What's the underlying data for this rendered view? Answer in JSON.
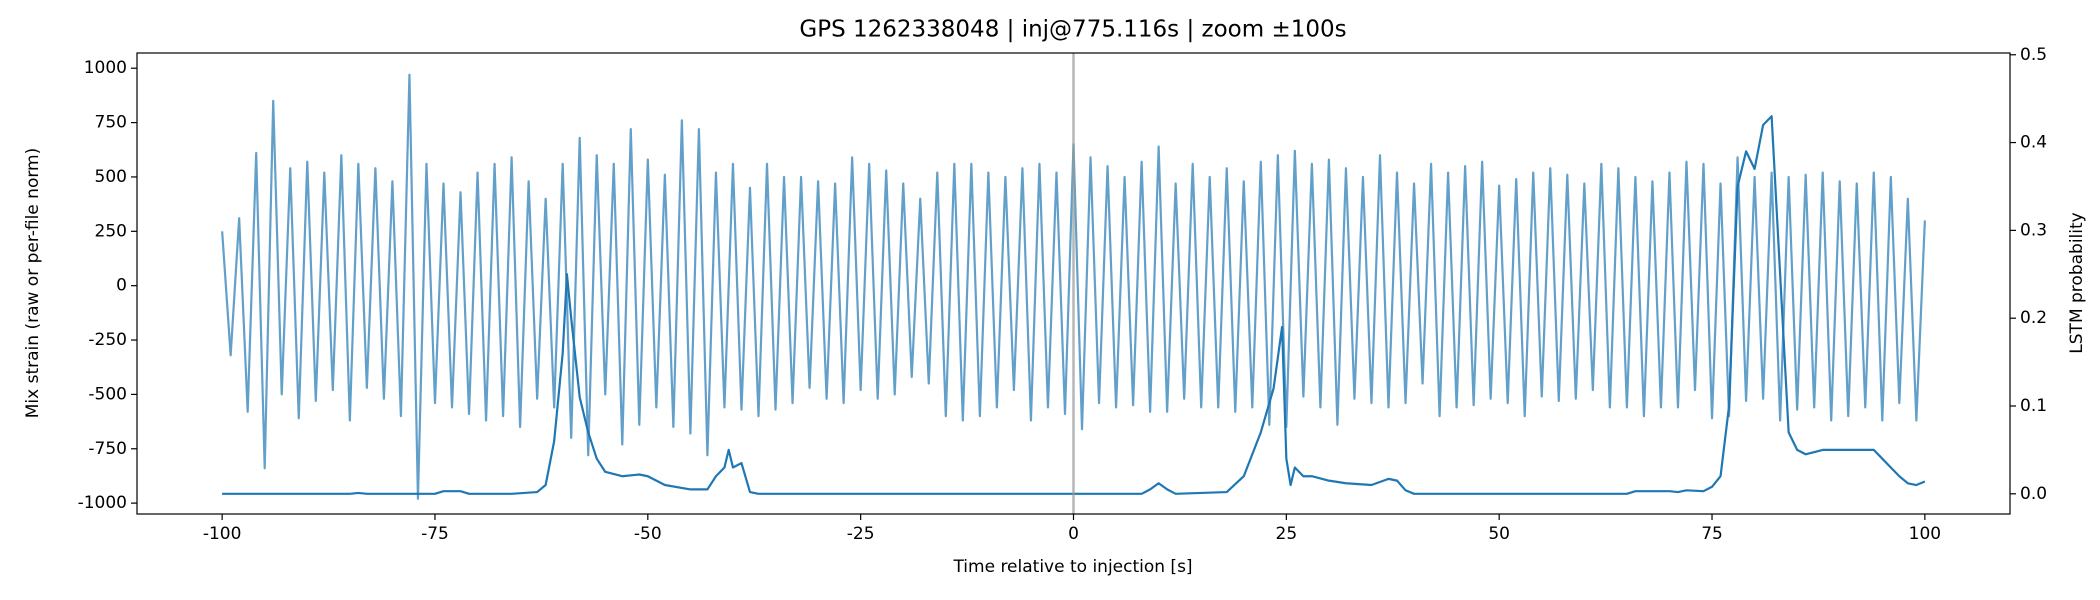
{
  "chart_data": {
    "type": "line",
    "title": "GPS 1262338048 | inj@775.116s | zoom ±100s",
    "xlabel": "Time relative to injection [s]",
    "ylabel": "Mix strain (raw or per-file norm)",
    "y2label": "LSTM probability",
    "xlim": [
      -110,
      110
    ],
    "xticks": [
      -100,
      -75,
      -50,
      -25,
      0,
      25,
      50,
      75,
      100
    ],
    "ylim": [
      -1050,
      1070
    ],
    "yticks": [
      -1000,
      -750,
      -500,
      -250,
      0,
      250,
      500,
      750,
      1000
    ],
    "y2lim": [
      -0.023,
      0.502
    ],
    "y2ticks": [
      {
        "value": 0,
        "label": "0.0"
      },
      0.1,
      0.2,
      0.3,
      0.4,
      0.5
    ],
    "grid": false,
    "vline": 0,
    "vline_color": "#999999",
    "series": [
      {
        "color": "#1f77b4",
        "alpha": 0.7,
        "axis": "y",
        "x": [
          -100,
          -99,
          -98,
          -97,
          -96,
          -95,
          -94,
          -93,
          -92,
          -91,
          -90,
          -89,
          -88,
          -87,
          -86,
          -85,
          -84,
          -83,
          -82,
          -81,
          -80,
          -79,
          -78,
          -77,
          -76,
          -75,
          -74,
          -73,
          -72,
          -71,
          -70,
          -69,
          -68,
          -67,
          -66,
          -65,
          -64,
          -63,
          -62,
          -61,
          -60,
          -59,
          -58,
          -57,
          -56,
          -55,
          -54,
          -53,
          -52,
          -51,
          -50,
          -49,
          -48,
          -47,
          -46,
          -45,
          -44,
          -43,
          -42,
          -41,
          -40,
          -39,
          -38,
          -37,
          -36,
          -35,
          -34,
          -33,
          -32,
          -31,
          -30,
          -29,
          -28,
          -27,
          -26,
          -25,
          -24,
          -23,
          -22,
          -21,
          -20,
          -19,
          -18,
          -17,
          -16,
          -15,
          -14,
          -13,
          -12,
          -11,
          -10,
          -9,
          -8,
          -7,
          -6,
          -5,
          -4,
          -3,
          -2,
          -1,
          0,
          1,
          2,
          3,
          4,
          5,
          6,
          7,
          8,
          9,
          10,
          11,
          12,
          13,
          14,
          15,
          16,
          17,
          18,
          19,
          20,
          21,
          22,
          23,
          24,
          25,
          26,
          27,
          28,
          29,
          30,
          31,
          32,
          33,
          34,
          35,
          36,
          37,
          38,
          39,
          40,
          41,
          42,
          43,
          44,
          45,
          46,
          47,
          48,
          49,
          50,
          51,
          52,
          53,
          54,
          55,
          56,
          57,
          58,
          59,
          60,
          61,
          62,
          63,
          64,
          65,
          66,
          67,
          68,
          69,
          70,
          71,
          72,
          73,
          74,
          75,
          76,
          77,
          78,
          79,
          80,
          81,
          82,
          83,
          84,
          85,
          86,
          87,
          88,
          89,
          90,
          91,
          92,
          93,
          94,
          95,
          96,
          97,
          98,
          99,
          100
        ],
        "values": [
          250,
          -320,
          310,
          -580,
          610,
          -840,
          850,
          -500,
          540,
          -610,
          570,
          -530,
          520,
          -480,
          600,
          -620,
          560,
          -470,
          540,
          -520,
          480,
          -600,
          970,
          -980,
          560,
          -540,
          470,
          -560,
          430,
          -590,
          520,
          -620,
          560,
          -600,
          590,
          -650,
          480,
          -520,
          400,
          -560,
          560,
          -700,
          680,
          -780,
          600,
          -500,
          560,
          -730,
          720,
          -640,
          580,
          -560,
          510,
          -650,
          760,
          -680,
          720,
          -780,
          520,
          -560,
          560,
          -570,
          450,
          -600,
          560,
          -570,
          500,
          -540,
          500,
          -470,
          480,
          -520,
          470,
          -540,
          590,
          -480,
          560,
          -520,
          530,
          -500,
          470,
          -420,
          400,
          -450,
          520,
          -600,
          560,
          -620,
          560,
          -600,
          520,
          -560,
          500,
          -480,
          540,
          -620,
          560,
          -560,
          520,
          -590,
          650,
          -660,
          590,
          -540,
          550,
          -560,
          500,
          -550,
          570,
          -580,
          640,
          -580,
          470,
          -520,
          560,
          -560,
          500,
          -560,
          540,
          -580,
          480,
          -560,
          570,
          -640,
          600,
          -650,
          620,
          -510,
          560,
          -560,
          580,
          -640,
          540,
          -520,
          500,
          -540,
          600,
          -560,
          520,
          -540,
          470,
          -450,
          560,
          -600,
          520,
          -560,
          550,
          -550,
          570,
          -520,
          460,
          -540,
          490,
          -600,
          520,
          -510,
          540,
          -530,
          510,
          -520,
          470,
          -480,
          560,
          -560,
          540,
          -560,
          500,
          -600,
          480,
          -560,
          520,
          -560,
          570,
          -480,
          560,
          -610,
          470,
          -600,
          590,
          -530,
          500,
          -520,
          520,
          -620,
          500,
          -570,
          510,
          -560,
          520,
          -620,
          480,
          -600,
          470,
          -560,
          520,
          -620,
          500,
          -540,
          400,
          -620,
          300
        ]
      },
      {
        "color": "#1f77b4",
        "alpha": 1,
        "axis": "y2",
        "x": [
          -100,
          -85,
          -84,
          -83,
          -75,
          -74,
          -72,
          -71,
          -66,
          -63,
          -62,
          -61,
          -60,
          -59.5,
          -59,
          -58,
          -57,
          -56,
          -55,
          -53,
          -51,
          -50,
          -48,
          -45,
          -43,
          -42,
          -41,
          -40.5,
          -40,
          -39,
          -38,
          -37,
          8,
          9,
          10,
          11,
          12,
          18,
          20,
          22,
          23.5,
          24.5,
          25,
          25.5,
          26,
          27,
          28,
          30,
          32,
          35,
          37,
          38,
          39,
          40,
          65,
          66,
          70,
          71,
          72,
          74,
          75,
          76,
          77,
          78,
          79,
          80,
          81,
          82,
          83,
          84,
          85,
          86,
          88,
          90,
          92,
          94,
          95,
          96,
          97,
          98,
          99,
          100
        ],
        "values": [
          0,
          0,
          0.001,
          0,
          0,
          0.003,
          0.003,
          0,
          0,
          0.002,
          0.01,
          0.06,
          0.16,
          0.25,
          0.2,
          0.11,
          0.07,
          0.04,
          0.025,
          0.02,
          0.022,
          0.02,
          0.01,
          0.005,
          0.005,
          0.02,
          0.03,
          0.05,
          0.03,
          0.035,
          0.002,
          0,
          0,
          0.005,
          0.012,
          0.005,
          0,
          0.002,
          0.02,
          0.07,
          0.12,
          0.19,
          0.04,
          0.01,
          0.03,
          0.02,
          0.02,
          0.015,
          0.012,
          0.01,
          0.017,
          0.015,
          0.004,
          0,
          0,
          0.003,
          0.003,
          0.002,
          0.004,
          0.003,
          0.008,
          0.02,
          0.1,
          0.35,
          0.39,
          0.37,
          0.42,
          0.43,
          0.25,
          0.07,
          0.05,
          0.045,
          0.05,
          0.05,
          0.05,
          0.05,
          0.04,
          0.03,
          0.02,
          0.012,
          0.01,
          0.014
        ]
      }
    ]
  }
}
